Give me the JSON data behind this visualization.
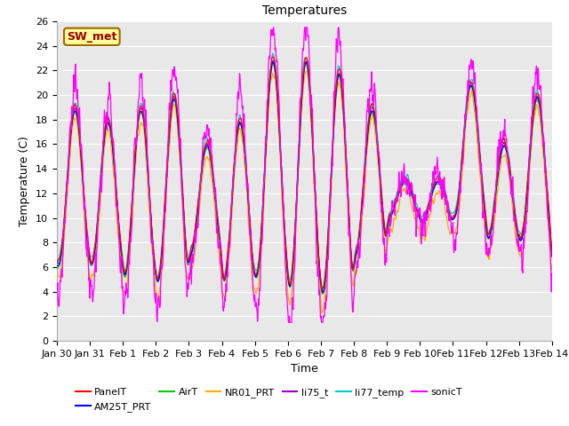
{
  "title": "Temperatures",
  "xlabel": "Time",
  "ylabel": "Temperature (C)",
  "ylim": [
    0,
    26
  ],
  "xtick_labels": [
    "Jan 30",
    "Jan 31",
    "Feb 1",
    "Feb 2",
    "Feb 3",
    "Feb 4",
    "Feb 5",
    "Feb 6",
    "Feb 7",
    "Feb 8",
    "Feb 9",
    "Feb 10",
    "Feb 11",
    "Feb 12",
    "Feb 13",
    "Feb 14"
  ],
  "series_colors": {
    "PanelT": "#ff0000",
    "AM25T_PRT": "#0000ff",
    "AirT": "#00cc00",
    "NR01_PRT": "#ffaa00",
    "li75_t": "#9900cc",
    "li77_temp": "#00cccc",
    "sonicT": "#ff00ff"
  },
  "annotation_text": "SW_met",
  "annotation_bg": "#ffff99",
  "annotation_fg": "#990000",
  "annotation_border": "#996600",
  "bg_color": "#e8e8e8",
  "fig_bg": "#ffffff",
  "grid_color": "#ffffff",
  "title_fontsize": 10,
  "axis_fontsize": 9,
  "tick_fontsize": 8,
  "legend_fontsize": 8,
  "yticks": [
    0,
    2,
    4,
    6,
    8,
    10,
    12,
    14,
    16,
    18,
    20,
    22,
    24,
    26
  ],
  "n_days": 15,
  "pts_per_day": 96
}
